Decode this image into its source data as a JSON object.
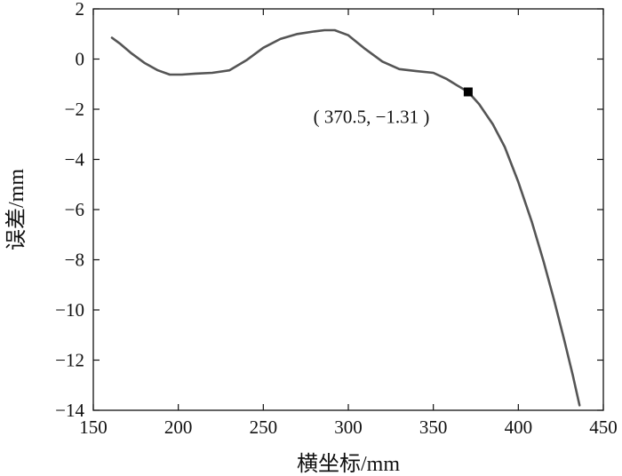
{
  "chart_data": {
    "type": "line",
    "xlabel": "横坐标/mm",
    "ylabel": "误差/mm",
    "xlim": [
      150,
      450
    ],
    "ylim": [
      -14,
      2
    ],
    "xticks": [
      150,
      200,
      250,
      300,
      350,
      400,
      450
    ],
    "yticks": [
      2,
      0,
      -2,
      -4,
      -6,
      -8,
      -10,
      -12,
      -14
    ],
    "tick_labels_x": [
      "150",
      "200",
      "250",
      "300",
      "350",
      "400",
      "450"
    ],
    "tick_labels_y": [
      "2",
      "0",
      "−2",
      "−4",
      "−6",
      "−8",
      "−10",
      "−12",
      "−14"
    ],
    "grid": false,
    "line_color": "#555555",
    "series": [
      {
        "x": [
          161,
          166,
          172,
          180,
          188,
          195,
          202,
          210,
          220,
          230,
          240,
          250,
          260,
          270,
          280,
          286,
          292,
          300,
          310,
          320,
          330,
          340,
          350,
          358,
          364,
          370.5,
          377,
          385,
          392,
          400,
          408,
          415,
          421,
          427,
          432,
          436
        ],
        "y": [
          0.85,
          0.6,
          0.25,
          -0.15,
          -0.45,
          -0.62,
          -0.62,
          -0.58,
          -0.55,
          -0.45,
          -0.05,
          0.45,
          0.8,
          1.0,
          1.1,
          1.15,
          1.15,
          0.95,
          0.4,
          -0.1,
          -0.4,
          -0.48,
          -0.55,
          -0.8,
          -1.05,
          -1.31,
          -1.8,
          -2.6,
          -3.5,
          -4.9,
          -6.5,
          -8.1,
          -9.6,
          -11.2,
          -12.6,
          -13.8
        ]
      }
    ],
    "marker": {
      "x": 370.5,
      "y": -1.31,
      "color": "#000000"
    },
    "annotation": "( 370.5,  −1.31 )"
  }
}
